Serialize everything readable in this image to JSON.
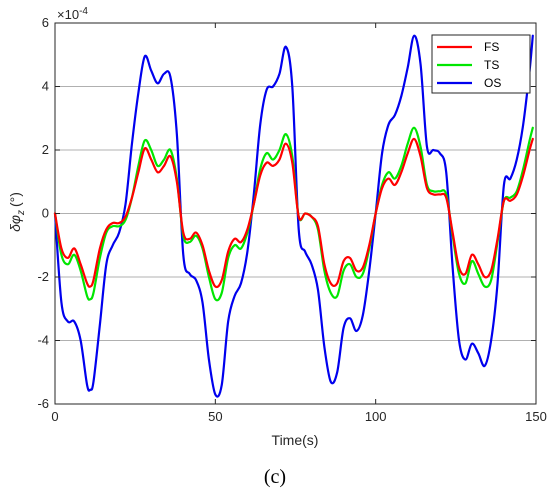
{
  "figure_label": "(c)",
  "chart_data": {
    "type": "line",
    "title": "",
    "xlabel": "Time(s)",
    "ylabel": "δφz (°)",
    "ylabel_main": "δφ",
    "ylabel_sub": "z",
    "ylabel_unit": "(°)",
    "y_exponent_label": "×10",
    "y_exponent_power": "-4",
    "xlim": [
      0,
      150
    ],
    "ylim": [
      -6,
      6
    ],
    "x_ticks": [
      0,
      50,
      100,
      150
    ],
    "y_ticks": [
      -6,
      -4,
      -2,
      0,
      2,
      4,
      6
    ],
    "x_tick_labels": [
      "0",
      "50",
      "100",
      "150"
    ],
    "y_tick_labels": [
      "-6",
      "-4",
      "-2",
      "0",
      "2",
      "4",
      "6"
    ],
    "legend_position": "top-right",
    "x": [
      0,
      2,
      4,
      6,
      8,
      10,
      11,
      12,
      14,
      16,
      18,
      20,
      22,
      24,
      26,
      28,
      30,
      32,
      34,
      36,
      38,
      40,
      42,
      44,
      46,
      48,
      50,
      52,
      54,
      56,
      58,
      60,
      62,
      64,
      66,
      68,
      70,
      72,
      74,
      76,
      78,
      80,
      82,
      84,
      86,
      88,
      90,
      92,
      94,
      96,
      98,
      100,
      102,
      104,
      106,
      108,
      110,
      112,
      114,
      116,
      118,
      120,
      122,
      124,
      126,
      128,
      130,
      132,
      134,
      136,
      138,
      140,
      142,
      144,
      146,
      148,
      149
    ],
    "series": [
      {
        "name": "FS",
        "color": "#ff0000",
        "values": [
          0,
          -1.1,
          -1.4,
          -1.1,
          -1.6,
          -2.2,
          -2.3,
          -2.1,
          -1.1,
          -0.5,
          -0.3,
          -0.3,
          -0.1,
          0.5,
          1.3,
          2.05,
          1.7,
          1.3,
          1.5,
          1.8,
          1.0,
          -0.6,
          -0.8,
          -0.6,
          -1.0,
          -1.8,
          -2.3,
          -2.1,
          -1.2,
          -0.8,
          -0.9,
          -0.5,
          0.3,
          1.2,
          1.6,
          1.5,
          1.7,
          2.2,
          1.6,
          -0.1,
          0.0,
          -0.1,
          -0.4,
          -1.6,
          -2.2,
          -2.2,
          -1.5,
          -1.4,
          -1.8,
          -1.7,
          -1.0,
          0,
          0.8,
          1.1,
          0.9,
          1.3,
          1.9,
          2.35,
          1.8,
          0.8,
          0.6,
          0.6,
          0.5,
          -0.6,
          -1.7,
          -1.9,
          -1.3,
          -1.6,
          -2.0,
          -1.8,
          -0.8,
          0.4,
          0.4,
          0.6,
          1.2,
          2.0,
          2.35
        ]
      },
      {
        "name": "TS",
        "color": "#00e600",
        "values": [
          0,
          -1.3,
          -1.6,
          -1.3,
          -1.8,
          -2.6,
          -2.7,
          -2.5,
          -1.4,
          -0.6,
          -0.4,
          -0.4,
          -0.2,
          0.5,
          1.5,
          2.3,
          2.0,
          1.5,
          1.7,
          2.0,
          1.1,
          -0.7,
          -0.9,
          -0.7,
          -1.1,
          -2.0,
          -2.7,
          -2.5,
          -1.4,
          -1.0,
          -1.1,
          -0.6,
          0.3,
          1.4,
          1.9,
          1.7,
          2.0,
          2.5,
          1.8,
          -0.1,
          0.0,
          -0.1,
          -0.5,
          -1.8,
          -2.5,
          -2.6,
          -1.8,
          -1.6,
          -2.0,
          -1.9,
          -1.1,
          0,
          0.9,
          1.3,
          1.1,
          1.5,
          2.2,
          2.7,
          2.1,
          0.9,
          0.7,
          0.7,
          0.6,
          -0.7,
          -1.9,
          -2.2,
          -1.5,
          -1.9,
          -2.3,
          -2.1,
          -0.9,
          0.4,
          0.5,
          0.7,
          1.4,
          2.3,
          2.7
        ]
      },
      {
        "name": "OS",
        "color": "#0000ee",
        "values": [
          0,
          -2.8,
          -3.4,
          -3.4,
          -4.0,
          -5.4,
          -5.55,
          -5.3,
          -3.5,
          -1.6,
          -1.0,
          -0.6,
          0.3,
          2.2,
          3.8,
          4.95,
          4.5,
          4.1,
          4.4,
          4.3,
          2.5,
          -1.3,
          -1.9,
          -2.1,
          -2.8,
          -4.6,
          -5.7,
          -5.4,
          -3.4,
          -2.6,
          -2.2,
          -1.2,
          0.6,
          2.8,
          3.9,
          4.0,
          4.4,
          5.25,
          4.0,
          -0.5,
          -1.2,
          -1.6,
          -2.4,
          -4.2,
          -5.3,
          -5.0,
          -3.6,
          -3.3,
          -3.7,
          -3.2,
          -1.8,
          0,
          1.9,
          2.8,
          3.1,
          3.7,
          4.6,
          5.6,
          4.7,
          2.1,
          2.0,
          1.9,
          1.3,
          -1.7,
          -4.0,
          -4.6,
          -4.1,
          -4.4,
          -4.8,
          -4.0,
          -2.2,
          0.9,
          1.1,
          1.7,
          2.8,
          4.5,
          5.6
        ]
      }
    ]
  }
}
